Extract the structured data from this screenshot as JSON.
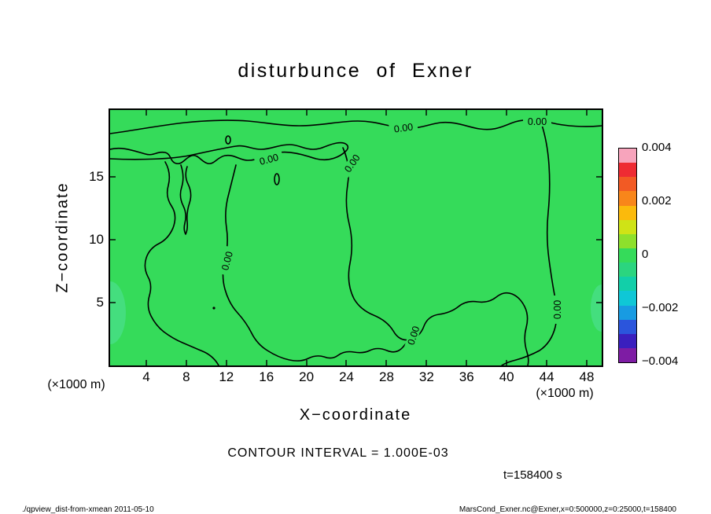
{
  "title": "disturbunce of Exner",
  "axes": {
    "x_label": "X−coordinate",
    "y_label": "Z−coordinate",
    "x_unit_left": "(×1000 m)",
    "x_unit_right": "(×1000 m)",
    "x_ticks": [
      "4",
      "8",
      "12",
      "16",
      "20",
      "24",
      "28",
      "32",
      "36",
      "40",
      "44",
      "48"
    ],
    "y_ticks": [
      "15",
      "10",
      "5"
    ]
  },
  "contour": {
    "label": "0.00"
  },
  "colorbar": {
    "tick_labels": [
      "0.004",
      "0.002",
      "0",
      "−0.002",
      "−0.004"
    ],
    "colors_top_to_bottom": [
      "#F7A4BC",
      "#EE2B33",
      "#F25A24",
      "#F8861A",
      "#FBBA0C",
      "#CFE316",
      "#8EE02C",
      "#35DB5A",
      "#2BD57F",
      "#12CFA9",
      "#0FC7D6",
      "#189BE2",
      "#2B55DC",
      "#3A1FBE",
      "#7E1CA4"
    ]
  },
  "annotations": {
    "contour_interval": "CONTOUR INTERVAL = 1.000E-03",
    "time_stamp": "t=158400 s",
    "footer_left": "./qpview_dist-from-xmean  2011-05-10",
    "footer_right": "MarsCond_Exner.nc@Exner,x=0:500000,z=0:25000,t=158400"
  },
  "colors": {
    "fill_green": "#35DB5A",
    "fill_mint": "#50E09C",
    "contour_line": "#000000",
    "background": "#FFFFFF"
  },
  "chart_data": {
    "type": "heatmap",
    "variant": "filled contour plot (tone + contour lines)",
    "title": "disturbunce of Exner",
    "xlabel": "X−coordinate (×1000 m)",
    "ylabel": "Z−coordinate (×1000 m)",
    "xlim": [
      0.5,
      50
    ],
    "ylim": [
      0,
      20.3
    ],
    "x_ticks": [
      4,
      8,
      12,
      16,
      20,
      24,
      28,
      32,
      36,
      40,
      44,
      48
    ],
    "y_ticks": [
      5,
      10,
      15
    ],
    "contour_interval": 0.001,
    "contour_levels_visible": [
      0
    ],
    "contour_line_label": "0.00",
    "colorbar": {
      "min": -0.004,
      "max": 0.004,
      "tick_values": [
        0.004,
        0.002,
        0,
        -0.002,
        -0.004
      ],
      "orientation": "vertical",
      "position": "right"
    },
    "field_summary": "Exner-function disturbance is approximately 0 (uniform green tone, |value| < 0.001) over essentially the whole x–z domain; meandering 0.00 contour lines run near the top (z≈19), through a squiggly band in the upper-left (x≈4–20, z≈13–17), down the mid-left (x≈11, z≈4–13), along the bottom (z≈1–4, x≈10–34), and quasi-vertically near x≈35 (z≈2–19); faintly negative pockets (cyan-green tone) sit at the left and right domain edges near z≈4–6",
    "time": "t=158400 s",
    "grid": false,
    "legend": false
  }
}
